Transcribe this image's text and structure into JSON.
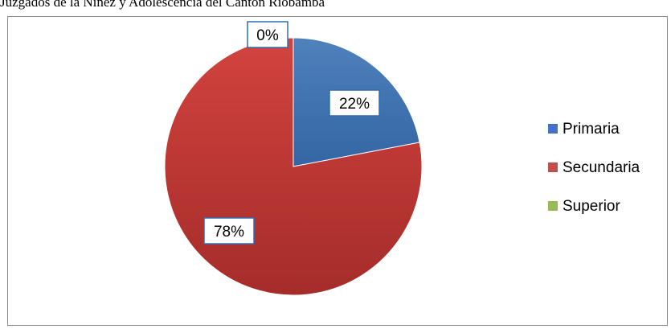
{
  "header": {
    "title_fragment": "Juzgados de la Niñez y Adolescencia del Cantón Riobamba"
  },
  "chart_data": {
    "type": "pie",
    "categories": [
      "Primaria",
      "Secundaria",
      "Superior"
    ],
    "values": [
      22,
      78,
      0
    ],
    "data_labels": [
      "22%",
      "78%",
      "0%"
    ],
    "colors": [
      "#4472C4",
      "#C0504D",
      "#9BBB59"
    ],
    "legend": {
      "position": "right",
      "entries": [
        "Primaria",
        "Secundaria",
        "Superior"
      ]
    }
  }
}
